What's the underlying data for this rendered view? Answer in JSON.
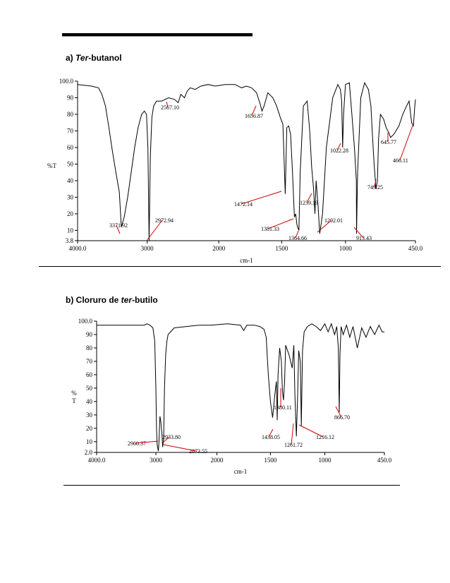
{
  "titles": {
    "a_prefix": "a) ",
    "a_italic": "Ter",
    "a_rest": "-butanol",
    "b_prefix": "b) Cloruro de ",
    "b_italic": "ter",
    "b_rest": "-butilo"
  },
  "chart_data": [
    {
      "type": "line",
      "title": "a) Ter-butanol",
      "xlabel": "cm-1",
      "ylabel": "%T",
      "xlim": [
        4000.0,
        450.0
      ],
      "ylim": [
        3.8,
        100.0
      ],
      "x_ticks": [
        "4000.0",
        "3000",
        "2000",
        "1500",
        "1000",
        "450.0"
      ],
      "y_ticks": [
        "100.0",
        "90",
        "80",
        "70",
        "60",
        "50",
        "40",
        "30",
        "20",
        "10",
        "3.8"
      ],
      "series": [
        {
          "x": [
            4000,
            3900,
            3800,
            3700,
            3650,
            3600,
            3550,
            3500,
            3450,
            3400,
            3371.92,
            3330,
            3280,
            3230,
            3180,
            3130,
            3080,
            3040,
            3010,
            2990,
            2972.94,
            2955,
            2935,
            2910,
            2870,
            2800,
            2700,
            2620,
            2567.1,
            2530,
            2480,
            2440,
            2400,
            2330,
            2250,
            2150,
            2050,
            1950,
            1870,
            1820,
            1780,
            1740,
            1700,
            1670,
            1656.87,
            1640,
            1610,
            1570,
            1540,
            1510,
            1490,
            1472.14,
            1460,
            1445,
            1430,
            1415,
            1400,
            1390,
            1381.33,
            1375,
            1364.66,
            1355,
            1330,
            1300,
            1280,
            1265,
            1250,
            1239.19,
            1230,
            1215,
            1202.01,
            1180,
            1150,
            1100,
            1060,
            1040,
            1030,
            1022.28,
            1015,
            1000,
            970,
            950,
            930,
            915,
            913.43,
            905,
            880,
            850,
            820,
            800,
            790,
            775,
            760,
            749.25,
            740,
            725,
            700,
            680,
            660,
            645.77,
            620,
            580,
            550,
            520,
            500,
            480,
            466.11,
            455,
            450
          ],
          "y": [
            98,
            97.5,
            97,
            96,
            92,
            85,
            72,
            58,
            45,
            33,
            12,
            18,
            30,
            45,
            60,
            72,
            80,
            82,
            80,
            60,
            4,
            55,
            78,
            85,
            88,
            88,
            90,
            89,
            87,
            92,
            90,
            94,
            96,
            95,
            97,
            98,
            97,
            98,
            98,
            96,
            97,
            96,
            93,
            86,
            82,
            85,
            93,
            90,
            85,
            78,
            74,
            32,
            72,
            73,
            68,
            45,
            18,
            20,
            14,
            12,
            10,
            45,
            85,
            88,
            70,
            48,
            35,
            20,
            40,
            25,
            8,
            20,
            60,
            90,
            98,
            95,
            88,
            60,
            80,
            98,
            99,
            80,
            60,
            40,
            8,
            45,
            90,
            99,
            95,
            85,
            70,
            50,
            35,
            40,
            65,
            80,
            77,
            72,
            69,
            66,
            68,
            73,
            80,
            85,
            88,
            75,
            73,
            85,
            89
          ]
        }
      ],
      "annotations": [
        "3371.92",
        "2972.94",
        "2567.10",
        "1656.87",
        "1472.14",
        "1381.33",
        "1364.66",
        "1239.19",
        "1202.01",
        "1022.28",
        "913.43",
        "749.25",
        "645.77",
        "466.11"
      ]
    },
    {
      "type": "line",
      "title": "b) Cloruro de ter-butilo",
      "xlabel": "cm-1",
      "ylabel": "% T",
      "xlim": [
        4000.0,
        450.0
      ],
      "ylim": [
        2.0,
        100.0
      ],
      "x_ticks": [
        "4000.0",
        "3000",
        "2000",
        "1500",
        "1000",
        "450.0"
      ],
      "y_ticks": [
        "100.0",
        "90",
        "80",
        "70",
        "60",
        "50",
        "40",
        "30",
        "20",
        "10",
        "2.0"
      ],
      "series": [
        {
          "x": [
            4000,
            3800,
            3600,
            3400,
            3200,
            3150,
            3100,
            3050,
            3020,
            3000,
            2990,
            2980,
            2960.37,
            2950,
            2940,
            2933.8,
            2920,
            2900,
            2890,
            2873.55,
            2860,
            2840,
            2820,
            2800,
            2700,
            2500,
            2300,
            2100,
            1900,
            1780,
            1750,
            1720,
            1700,
            1650,
            1600,
            1560,
            1540,
            1520,
            1500,
            1480,
            1460,
            1445,
            1438.05,
            1430,
            1415,
            1400,
            1390,
            1380.11,
            1370,
            1360,
            1330,
            1300,
            1285,
            1275,
            1261.72,
            1250,
            1240,
            1225,
            1216.12,
            1205,
            1190,
            1160,
            1120,
            1080,
            1040,
            1000,
            970,
            940,
            910,
            890,
            875,
            866.7,
            860,
            850,
            830,
            800,
            770,
            740,
            700,
            660,
            620,
            580,
            540,
            500,
            470,
            450
          ],
          "y": [
            97,
            97,
            97,
            97,
            97,
            98,
            97,
            95,
            85,
            50,
            20,
            8,
            3,
            10,
            22,
            29,
            25,
            15,
            6,
            12,
            50,
            75,
            85,
            90,
            95,
            96,
            97,
            97,
            98,
            97,
            93,
            97,
            97,
            97,
            96,
            94,
            88,
            60,
            40,
            28,
            45,
            55,
            26,
            60,
            80,
            70,
            48,
            41,
            55,
            82,
            75,
            65,
            82,
            45,
            14,
            45,
            78,
            70,
            22,
            78,
            92,
            96,
            98,
            96,
            93,
            98,
            92,
            98,
            90,
            96,
            80,
            32,
            75,
            96,
            90,
            97,
            88,
            96,
            80,
            95,
            88,
            96,
            90,
            97,
            92,
            92
          ]
        }
      ],
      "annotations": [
        "2960.37",
        "2933.80",
        "2873.55",
        "1438.05",
        "1380.11",
        "1261.72",
        "1216.12",
        "866.70"
      ]
    }
  ],
  "colors": {
    "line": "#000000",
    "leader": "#cc0000",
    "label": "#000000"
  }
}
